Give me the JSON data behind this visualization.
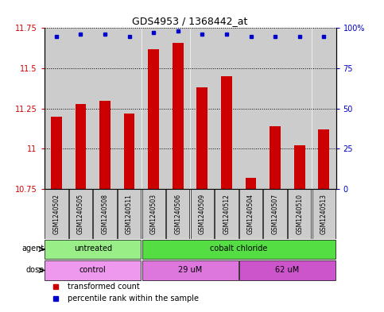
{
  "title": "GDS4953 / 1368442_at",
  "samples": [
    "GSM1240502",
    "GSM1240505",
    "GSM1240508",
    "GSM1240511",
    "GSM1240503",
    "GSM1240506",
    "GSM1240509",
    "GSM1240512",
    "GSM1240504",
    "GSM1240507",
    "GSM1240510",
    "GSM1240513"
  ],
  "transformed_counts": [
    11.2,
    11.28,
    11.3,
    11.22,
    11.62,
    11.66,
    11.38,
    11.45,
    10.82,
    11.14,
    11.02,
    11.12
  ],
  "percentile_ranks": [
    95,
    96,
    96,
    95,
    97,
    98,
    96,
    96,
    95,
    95,
    95,
    95
  ],
  "ymin": 10.75,
  "ymax": 11.75,
  "yticks": [
    10.75,
    11.0,
    11.25,
    11.5,
    11.75
  ],
  "ytick_labels": [
    "10.75",
    "11",
    "11.25",
    "11.5",
    "11.75"
  ],
  "right_yticks": [
    0,
    25,
    50,
    75,
    100
  ],
  "right_ytick_labels": [
    "0",
    "25",
    "50",
    "75",
    "100%"
  ],
  "bar_color": "#cc0000",
  "dot_color": "#0000cc",
  "agent_groups": [
    {
      "label": "untreated",
      "start": 0,
      "end": 4,
      "color": "#99ee88"
    },
    {
      "label": "cobalt chloride",
      "start": 4,
      "end": 12,
      "color": "#55dd44"
    }
  ],
  "dose_groups": [
    {
      "label": "control",
      "start": 0,
      "end": 4,
      "color": "#ee99ee"
    },
    {
      "label": "29 uM",
      "start": 4,
      "end": 8,
      "color": "#dd77dd"
    },
    {
      "label": "62 uM",
      "start": 8,
      "end": 12,
      "color": "#cc55cc"
    }
  ],
  "legend_items": [
    {
      "color": "#cc0000",
      "label": "transformed count"
    },
    {
      "color": "#0000cc",
      "label": "percentile rank within the sample"
    }
  ],
  "tick_color_left": "#cc0000",
  "tick_color_right": "#0000cc",
  "background_color": "#ffffff",
  "sample_bg_color": "#cccccc",
  "sample_label_fontsize": 5.5,
  "bar_width": 0.45
}
